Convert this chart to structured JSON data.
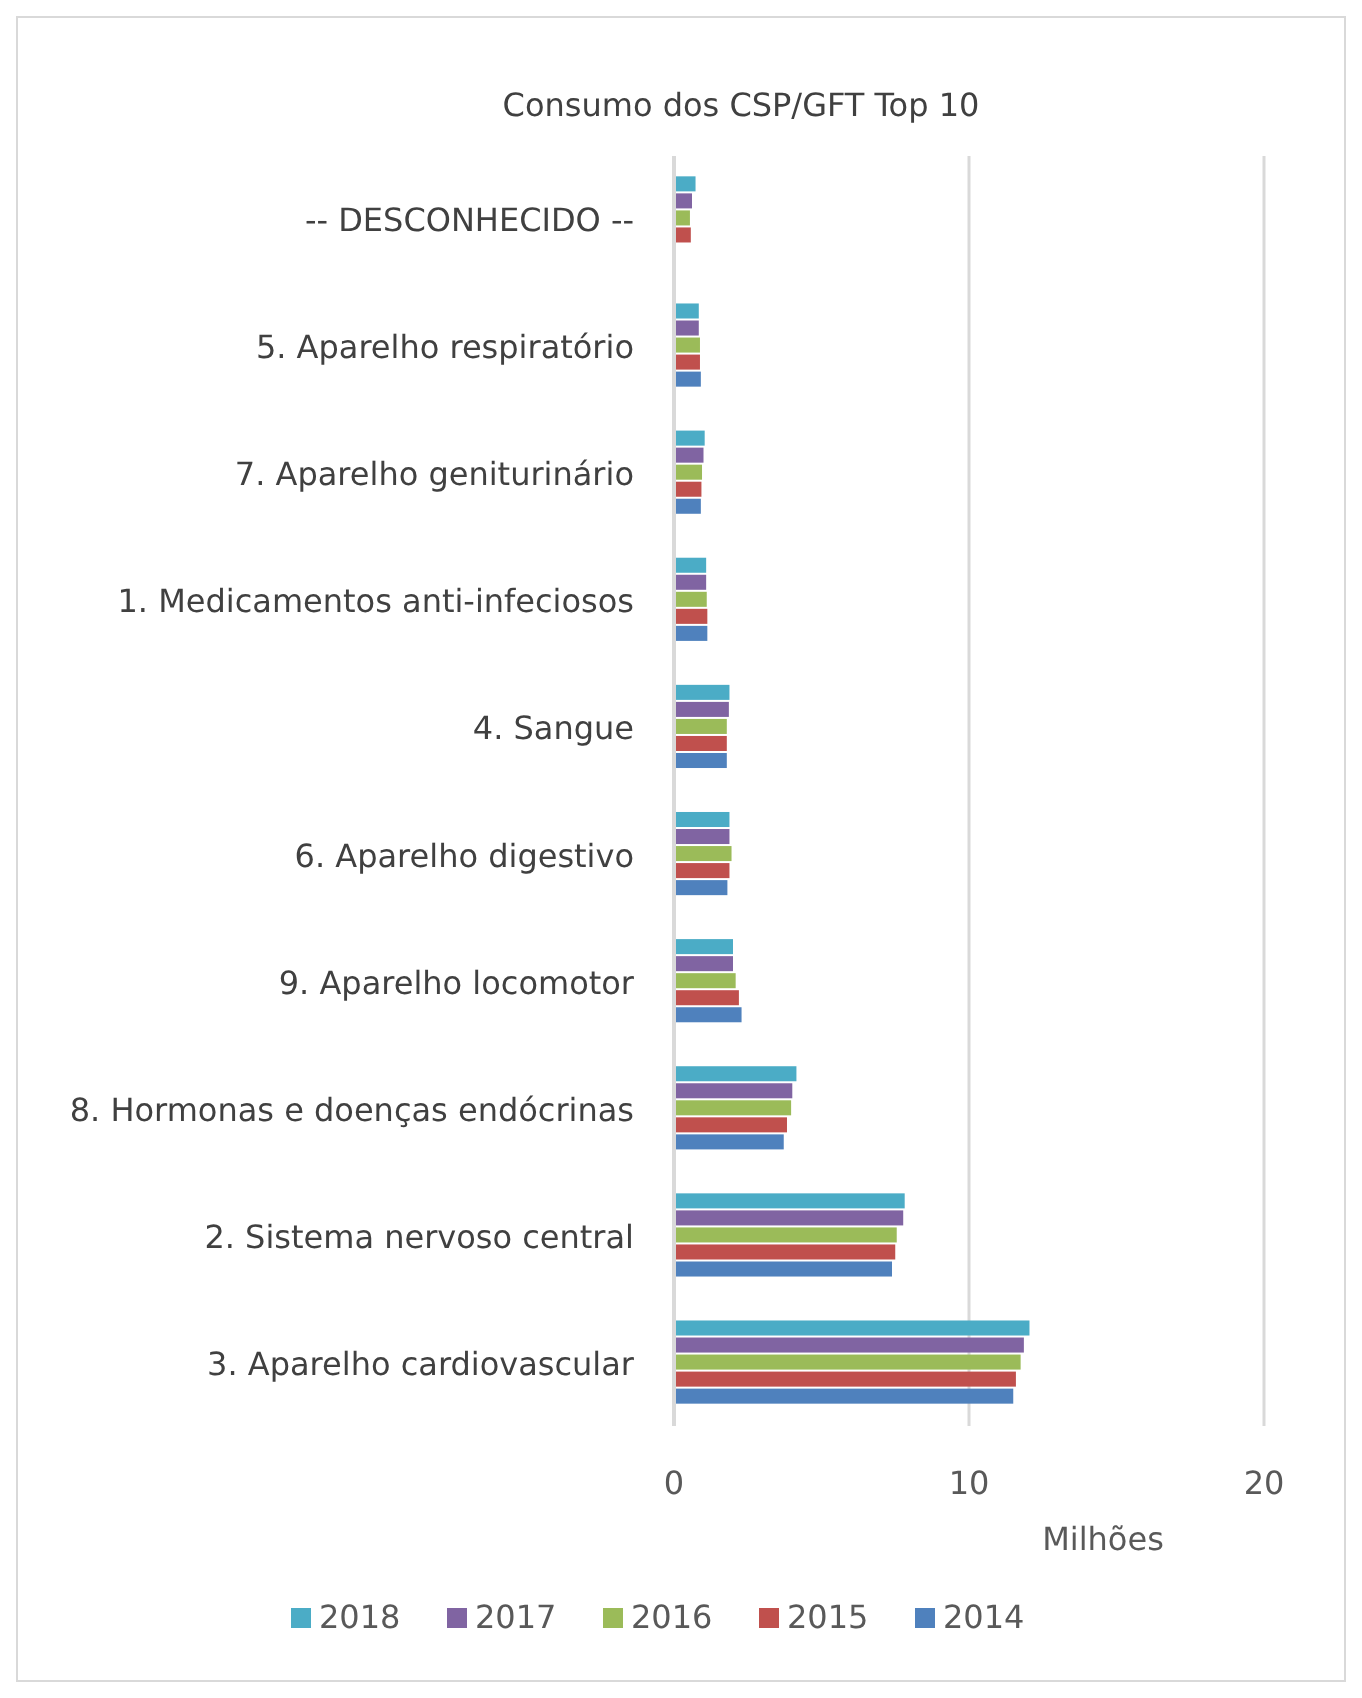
{
  "chart_data": {
    "type": "bar",
    "orientation": "horizontal",
    "title": "Consumo dos CSP/GFT Top 10",
    "xlabel": "Milhões",
    "categories": [
      "-- DESCONHECIDO --",
      "5. Aparelho respiratório",
      "7. Aparelho geniturinário",
      "1. Medicamentos anti-infeciosos",
      "4. Sangue",
      "6. Aparelho digestivo",
      "9. Aparelho locomotor",
      "8. Hormonas e doenças endócrinas",
      "2. Sistema nervoso central",
      "3. Aparelho cardiovascular"
    ],
    "series": [
      {
        "name": "2018",
        "color": "#4bacc6",
        "values": [
          0.73,
          0.84,
          1.04,
          1.09,
          1.88,
          1.88,
          2.0,
          4.15,
          7.82,
          12.05
        ]
      },
      {
        "name": "2017",
        "color": "#8064a2",
        "values": [
          0.61,
          0.84,
          1.0,
          1.09,
          1.86,
          1.88,
          2.0,
          4.01,
          7.77,
          11.86
        ]
      },
      {
        "name": "2016",
        "color": "#9bbb59",
        "values": [
          0.54,
          0.88,
          0.95,
          1.11,
          1.79,
          1.95,
          2.09,
          3.97,
          7.55,
          11.75
        ]
      },
      {
        "name": "2015",
        "color": "#c0504d",
        "values": [
          0.57,
          0.88,
          0.93,
          1.13,
          1.79,
          1.88,
          2.2,
          3.83,
          7.5,
          11.59
        ]
      },
      {
        "name": "2014",
        "color": "#4f81bd",
        "values": [
          null,
          0.91,
          0.91,
          1.13,
          1.79,
          1.81,
          2.29,
          3.72,
          7.39,
          11.5
        ]
      }
    ],
    "xlim": [
      0,
      20
    ],
    "xticks": [
      0,
      10,
      20
    ],
    "grid": "x",
    "legend": "bottom"
  }
}
